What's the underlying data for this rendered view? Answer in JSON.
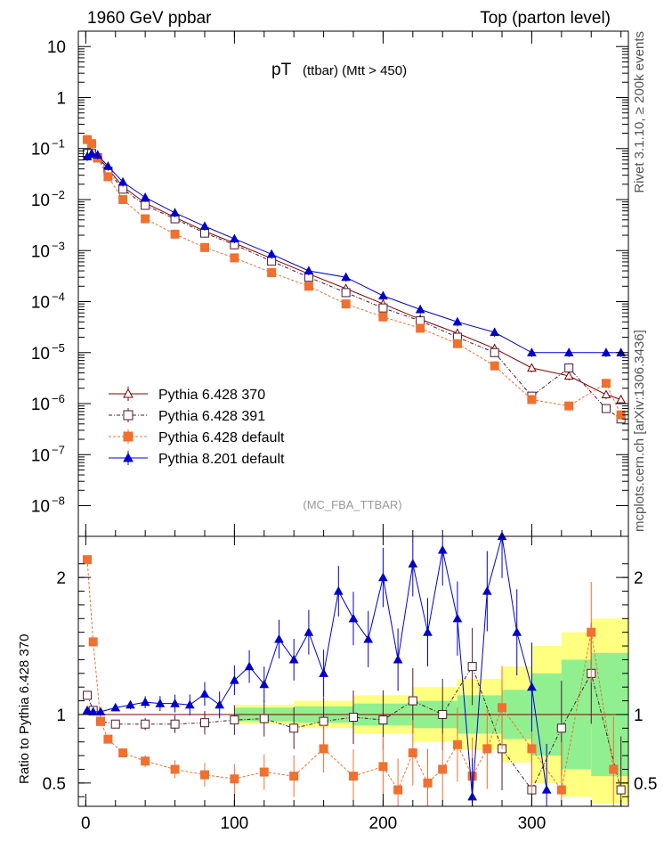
{
  "header": {
    "left": "1960 GeV ppbar",
    "right": "Top (parton level)"
  },
  "side_labels": {
    "rivet": "Rivet 3.1.10, ≥ 200k events",
    "mcplots": "mcplots.cern.ch [arXiv:1306.3436]"
  },
  "chart_data": [
    {
      "panel": "main",
      "type": "scatter",
      "title_main": "pT",
      "title_sub": "(ttbar) (Mtt > 450)",
      "watermark": "(MC_FBA_TTBAR)",
      "yscale": "log",
      "ylim": [
        2.5e-09,
        20
      ],
      "xlim": [
        -5,
        365
      ],
      "y_ticks": [
        {
          "v": 10,
          "label": "10"
        },
        {
          "v": 1,
          "label": "1"
        },
        {
          "v": 0.1,
          "label": "10",
          "exp": "−1"
        },
        {
          "v": 0.01,
          "label": "10",
          "exp": "−2"
        },
        {
          "v": 0.001,
          "label": "10",
          "exp": "−3"
        },
        {
          "v": 0.0001,
          "label": "10",
          "exp": "−4"
        },
        {
          "v": 1e-05,
          "label": "10",
          "exp": "−5"
        },
        {
          "v": 1e-06,
          "label": "10",
          "exp": "−6"
        },
        {
          "v": 1e-07,
          "label": "10",
          "exp": "−7"
        },
        {
          "v": 1e-08,
          "label": "10",
          "exp": "−8"
        }
      ],
      "legend_position": "bottom-left",
      "series": [
        {
          "name": "Pythia 6.428 370",
          "color": "#800000",
          "marker": "triangle-open",
          "x": [
            1,
            4,
            8,
            15,
            25,
            40,
            60,
            80,
            100,
            125,
            150,
            175,
            200,
            225,
            250,
            275,
            300,
            325,
            350,
            360
          ],
          "y": [
            0.07,
            0.082,
            0.07,
            0.04,
            0.018,
            0.0085,
            0.0045,
            0.0024,
            0.0014,
            0.0007,
            0.00035,
            0.00018,
            9e-05,
            4.5e-05,
            2.4e-05,
            1.2e-05,
            5e-06,
            3.5e-06,
            1.5e-06,
            1.2e-06
          ]
        },
        {
          "name": "Pythia 6.428 391",
          "color": "#4d1a2e",
          "marker": "square-open",
          "x": [
            1,
            4,
            8,
            15,
            25,
            40,
            60,
            80,
            100,
            125,
            150,
            175,
            200,
            225,
            250,
            275,
            300,
            325,
            350,
            360
          ],
          "y": [
            0.08,
            0.08,
            0.066,
            0.036,
            0.016,
            0.0077,
            0.0042,
            0.0022,
            0.0013,
            0.00062,
            0.0003,
            0.00015,
            7.5e-05,
            4.2e-05,
            2e-05,
            1e-05,
            1.4e-06,
            5e-06,
            8e-07,
            5e-07
          ]
        },
        {
          "name": "Pythia 6.428 default",
          "color": "#f07030",
          "marker": "square-filled",
          "x": [
            1,
            4,
            8,
            15,
            25,
            40,
            60,
            80,
            100,
            125,
            150,
            175,
            200,
            225,
            250,
            275,
            300,
            325,
            350,
            360
          ],
          "y": [
            0.15,
            0.125,
            0.065,
            0.028,
            0.01,
            0.0042,
            0.0021,
            0.00115,
            0.00072,
            0.00037,
            0.0002,
            9e-05,
            5e-05,
            3e-05,
            1.5e-05,
            5.5e-06,
            1.2e-06,
            9e-07,
            2.5e-06,
            6e-07
          ]
        },
        {
          "name": "Pythia 8.201 default",
          "color": "#0000cc",
          "marker": "triangle-filled",
          "x": [
            1,
            4,
            8,
            15,
            25,
            40,
            60,
            80,
            100,
            125,
            150,
            175,
            200,
            225,
            250,
            275,
            300,
            325,
            350,
            360
          ],
          "y": [
            0.07,
            0.08,
            0.075,
            0.045,
            0.022,
            0.011,
            0.0055,
            0.003,
            0.0017,
            0.00085,
            0.0004,
            0.0003,
            0.00013,
            7e-05,
            4e-05,
            2.5e-05,
            1e-05,
            1e-05,
            1e-05,
            1e-05
          ]
        }
      ]
    },
    {
      "panel": "ratio",
      "type": "scatter",
      "ylabel": "Ratio to Pythia 6.428 370",
      "ylim": [
        0.33,
        2.3
      ],
      "xlim": [
        -5,
        365
      ],
      "x_ticks": [
        0,
        100,
        200,
        300
      ],
      "y_ticks": [
        0.5,
        1,
        2
      ],
      "band_edges": [
        100,
        140,
        180,
        220,
        250,
        280,
        300,
        320,
        340,
        365
      ],
      "band_green_lo": [
        0.95,
        0.94,
        0.92,
        0.9,
        0.86,
        0.82,
        0.7,
        0.6,
        0.55
      ],
      "band_green_hi": [
        1.05,
        1.06,
        1.08,
        1.1,
        1.14,
        1.18,
        1.3,
        1.4,
        1.45
      ],
      "band_yellow_lo": [
        0.93,
        0.9,
        0.86,
        0.8,
        0.74,
        0.65,
        0.5,
        0.4,
        0.35
      ],
      "band_yellow_hi": [
        1.07,
        1.1,
        1.14,
        1.2,
        1.26,
        1.35,
        1.5,
        1.6,
        1.7
      ],
      "series": [
        {
          "name": "Pythia 6.428 391",
          "color": "#4d1a2e",
          "marker": "square-open",
          "x": [
            1,
            5,
            10,
            20,
            40,
            60,
            80,
            100,
            120,
            140,
            160,
            180,
            200,
            220,
            240,
            260,
            280,
            300,
            320,
            340,
            360
          ],
          "y": [
            1.14,
            1.03,
            0.95,
            0.93,
            0.93,
            0.93,
            0.94,
            0.96,
            0.97,
            0.9,
            0.95,
            0.98,
            0.96,
            1.1,
            1.0,
            1.35,
            0.75,
            0.45,
            0.9,
            1.3,
            0.45
          ]
        },
        {
          "name": "Pythia 6.428 default",
          "color": "#f07030",
          "marker": "square-filled",
          "x": [
            1,
            5,
            10,
            15,
            25,
            40,
            60,
            80,
            100,
            120,
            140,
            160,
            180,
            200,
            210,
            220,
            230,
            240,
            250,
            260,
            270,
            280,
            300,
            320,
            340,
            355
          ],
          "y": [
            2.13,
            1.53,
            0.95,
            0.82,
            0.72,
            0.66,
            0.6,
            0.56,
            0.53,
            0.58,
            0.55,
            0.75,
            0.55,
            0.62,
            0.45,
            0.72,
            0.5,
            0.6,
            0.78,
            0.55,
            0.75,
            1.05,
            0.75,
            0.45,
            1.6,
            0.6
          ]
        },
        {
          "name": "Pythia 8.201 default",
          "color": "#0000cc",
          "marker": "triangle-filled",
          "x": [
            1,
            5,
            10,
            20,
            30,
            40,
            50,
            60,
            70,
            80,
            90,
            100,
            110,
            120,
            130,
            140,
            150,
            160,
            170,
            180,
            190,
            200,
            210,
            220,
            230,
            240,
            250,
            260,
            270,
            280,
            290,
            300,
            310
          ],
          "y": [
            1.03,
            1.02,
            1.02,
            1.05,
            1.07,
            1.09,
            1.08,
            1.08,
            1.07,
            1.15,
            1.07,
            1.25,
            1.35,
            1.22,
            1.55,
            1.4,
            1.6,
            1.3,
            1.9,
            1.7,
            1.55,
            2.0,
            1.4,
            2.1,
            1.6,
            2.2,
            1.7,
            0.4,
            1.9,
            2.3,
            1.6,
            1.2,
            0.45
          ]
        }
      ]
    }
  ]
}
